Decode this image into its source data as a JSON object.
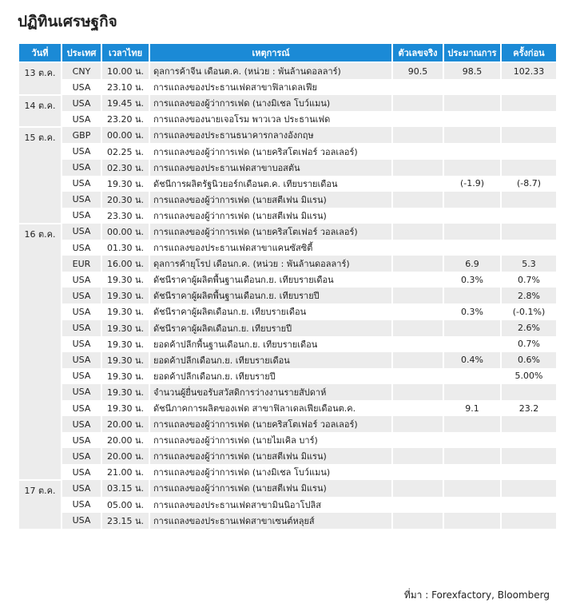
{
  "title": "ปฏิทินเศรษฐกิจ",
  "table": {
    "header": [
      "วันที่",
      "ประเทศ",
      "เวลาไทย",
      "เหตุการณ์",
      "ตัวเลขจริง",
      "ประมาณการ",
      "ครั้งก่อน"
    ],
    "groups": [
      {
        "date": "13 ต.ค.",
        "rows": [
          {
            "country": "CNY",
            "time": "10.00 น.",
            "event": "ดุลการค้าจีน เดือนต.ค. (หน่วย : พันล้านดอลลาร์)",
            "actual": "90.5",
            "forecast": "98.5",
            "previous": "102.33"
          },
          {
            "country": "USA",
            "time": "23.10 น.",
            "event": "การแถลงของประธานเฟดสาขาฟิลาเดลเฟีย"
          }
        ]
      },
      {
        "date": "14 ต.ค.",
        "rows": [
          {
            "country": "USA",
            "time": "19.45 น.",
            "event": "การแถลงของผู้ว่าการเฟด (นางมิเชล โบว์แมน)"
          },
          {
            "country": "USA",
            "time": "23.20 น.",
            "event": "การแถลงของนายเจอโรม พาวเวล ประธานเฟด"
          }
        ]
      },
      {
        "date": "15 ต.ค.",
        "rows": [
          {
            "country": "GBP",
            "time": "00.00 น.",
            "event": "การแถลงของประธานธนาคารกลางอังกฤษ"
          },
          {
            "country": "USA",
            "time": "02.25 น.",
            "event": "การแถลงของผู้ว่าการเฟด (นายคริสโตเฟอร์ วอลเลอร์)"
          },
          {
            "country": "USA",
            "time": "02.30 น.",
            "event": "การแถลงของประธานเฟดสาขาบอสตัน"
          },
          {
            "country": "USA",
            "time": "19.30 น.",
            "event": "ดัชนีการผลิตรัฐนิวยอร์กเดือนต.ค. เทียบรายเดือน",
            "forecast": "(-1.9)",
            "previous": "(-8.7)"
          },
          {
            "country": "USA",
            "time": "20.30 น.",
            "event": "การแถลงของผู้ว่าการเฟด (นายสตีเฟน มิแรน)"
          },
          {
            "country": "USA",
            "time": "23.30 น.",
            "event": "การแถลงของผู้ว่าการเฟด (นายสตีเฟน มิแรน)"
          }
        ]
      },
      {
        "date": "16 ต.ค.",
        "rows": [
          {
            "country": "USA",
            "time": "00.00 น.",
            "event": "การแถลงของผู้ว่าการเฟด (นายคริสโตเฟอร์ วอลเลอร์)"
          },
          {
            "country": "USA",
            "time": "01.30 น.",
            "event": "การแถลงของประธานเฟดสาขาแคนซัสซิตี้"
          },
          {
            "country": "EUR",
            "time": "16.00 น.",
            "event": "ดุลการค้ายุโรป เดือนก.ค. (หน่วย : พันล้านดอลลาร์)",
            "forecast": "6.9",
            "previous": "5.3"
          },
          {
            "country": "USA",
            "time": "19.30 น.",
            "event": "ดัชนีราคาผู้ผลิตพื้นฐานเดือนก.ย. เทียบรายเดือน",
            "forecast": "0.3%",
            "previous": "0.7%"
          },
          {
            "country": "USA",
            "time": "19.30 น.",
            "event": "ดัชนีราคาผู้ผลิตพื้นฐานเดือนก.ย. เทียบรายปี",
            "previous": "2.8%"
          },
          {
            "country": "USA",
            "time": "19.30 น.",
            "event": "ดัชนีราคาผู้ผลิตเดือนก.ย. เทียบรายเดือน",
            "forecast": "0.3%",
            "previous": "(-0.1%)"
          },
          {
            "country": "USA",
            "time": "19.30 น.",
            "event": "ดัชนีราคาผู้ผลิตเดือนก.ย. เทียบรายปี",
            "previous": "2.6%"
          },
          {
            "country": "USA",
            "time": "19.30 น.",
            "event": "ยอดค้าปลีกพื้นฐานเดือนก.ย. เทียบรายเดือน",
            "previous": "0.7%"
          },
          {
            "country": "USA",
            "time": "19.30 น.",
            "event": "ยอดค้าปลีกเดือนก.ย. เทียบรายเดือน",
            "forecast": "0.4%",
            "previous": "0.6%"
          },
          {
            "country": "USA",
            "time": "19.30 น.",
            "event": "ยอดค้าปลีกเดือนก.ย. เทียบรายปี",
            "previous": "5.00%"
          },
          {
            "country": "USA",
            "time": "19.30 น.",
            "event": "จำนวนผู้ยื่นขอรับสวัสดิการว่างงานรายสัปดาห์"
          },
          {
            "country": "USA",
            "time": "19.30 น.",
            "event": "ดัชนีภาคการผลิตของเฟด สาขาฟิลาเดลเฟียเดือนต.ค.",
            "forecast": "9.1",
            "previous": "23.2"
          },
          {
            "country": "USA",
            "time": "20.00 น.",
            "event": "การแถลงของผู้ว่าการเฟด (นายคริสโตเฟอร์ วอลเลอร์)"
          },
          {
            "country": "USA",
            "time": "20.00 น.",
            "event": "การแถลงของผู้ว่าการเฟด (นายไมเคิล บาร์)"
          },
          {
            "country": "USA",
            "time": "20.00 น.",
            "event": "การแถลงของผู้ว่าการเฟด (นายสตีเฟน มิแรน)"
          },
          {
            "country": "USA",
            "time": "21.00 น.",
            "event": "การแถลงของผู้ว่าการเฟด (นางมิเชล โบว์แมน)"
          }
        ]
      },
      {
        "date": "17 ต.ค.",
        "rows": [
          {
            "country": "USA",
            "time": "03.15 น.",
            "event": "การแถลงของผู้ว่าการเฟด (นายสตีเฟน มิแรน)"
          },
          {
            "country": "USA",
            "time": "05.00 น.",
            "event": "การแถลงของประธานเฟดสาขามินนิอาโปลิส"
          },
          {
            "country": "USA",
            "time": "23.15 น.",
            "event": "การแถลงของประธานเฟดสาขาเซนต์หลุยส์"
          }
        ]
      }
    ]
  },
  "source": "ที่มา : Forexfactory, Bloomberg"
}
